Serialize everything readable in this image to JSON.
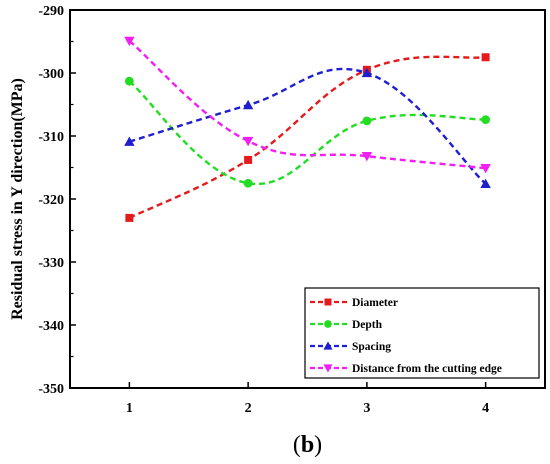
{
  "chart_data": {
    "type": "line",
    "title": "",
    "xlabel": "",
    "ylabel": "Residual stress in Y direction(MPa)",
    "x": [
      1,
      2,
      3,
      4
    ],
    "xticks": [
      "1",
      "2",
      "3",
      "4"
    ],
    "xlim": [
      0.5,
      4.5
    ],
    "ylim": [
      -350,
      -290
    ],
    "yticks": [
      -350,
      -340,
      -330,
      -320,
      -310,
      -300,
      -290
    ],
    "ytick_labels": [
      "-350",
      "-340",
      "-330",
      "-320",
      "-310",
      "-300",
      "-290"
    ],
    "grid": false,
    "legend_position": "bottom-right",
    "series": [
      {
        "name": "Diameter",
        "values": [
          -323.0,
          -313.8,
          -299.5,
          -297.5
        ],
        "color": "#e41a1c",
        "marker": "square"
      },
      {
        "name": "Depth",
        "values": [
          -301.3,
          -317.5,
          -307.6,
          -307.4
        ],
        "color": "#22dd22",
        "marker": "circle"
      },
      {
        "name": "Spacing",
        "values": [
          -310.9,
          -305.1,
          -300.0,
          -317.6
        ],
        "color": "#1f1fcf",
        "marker": "triangle-up"
      },
      {
        "name": "Distance from the cutting edge",
        "values": [
          -294.9,
          -310.8,
          -313.2,
          -315.1
        ],
        "color": "#f21ef2",
        "marker": "triangle-down"
      }
    ],
    "panel_label": {
      "open": "(",
      "letter": "b",
      "close": ")"
    }
  }
}
